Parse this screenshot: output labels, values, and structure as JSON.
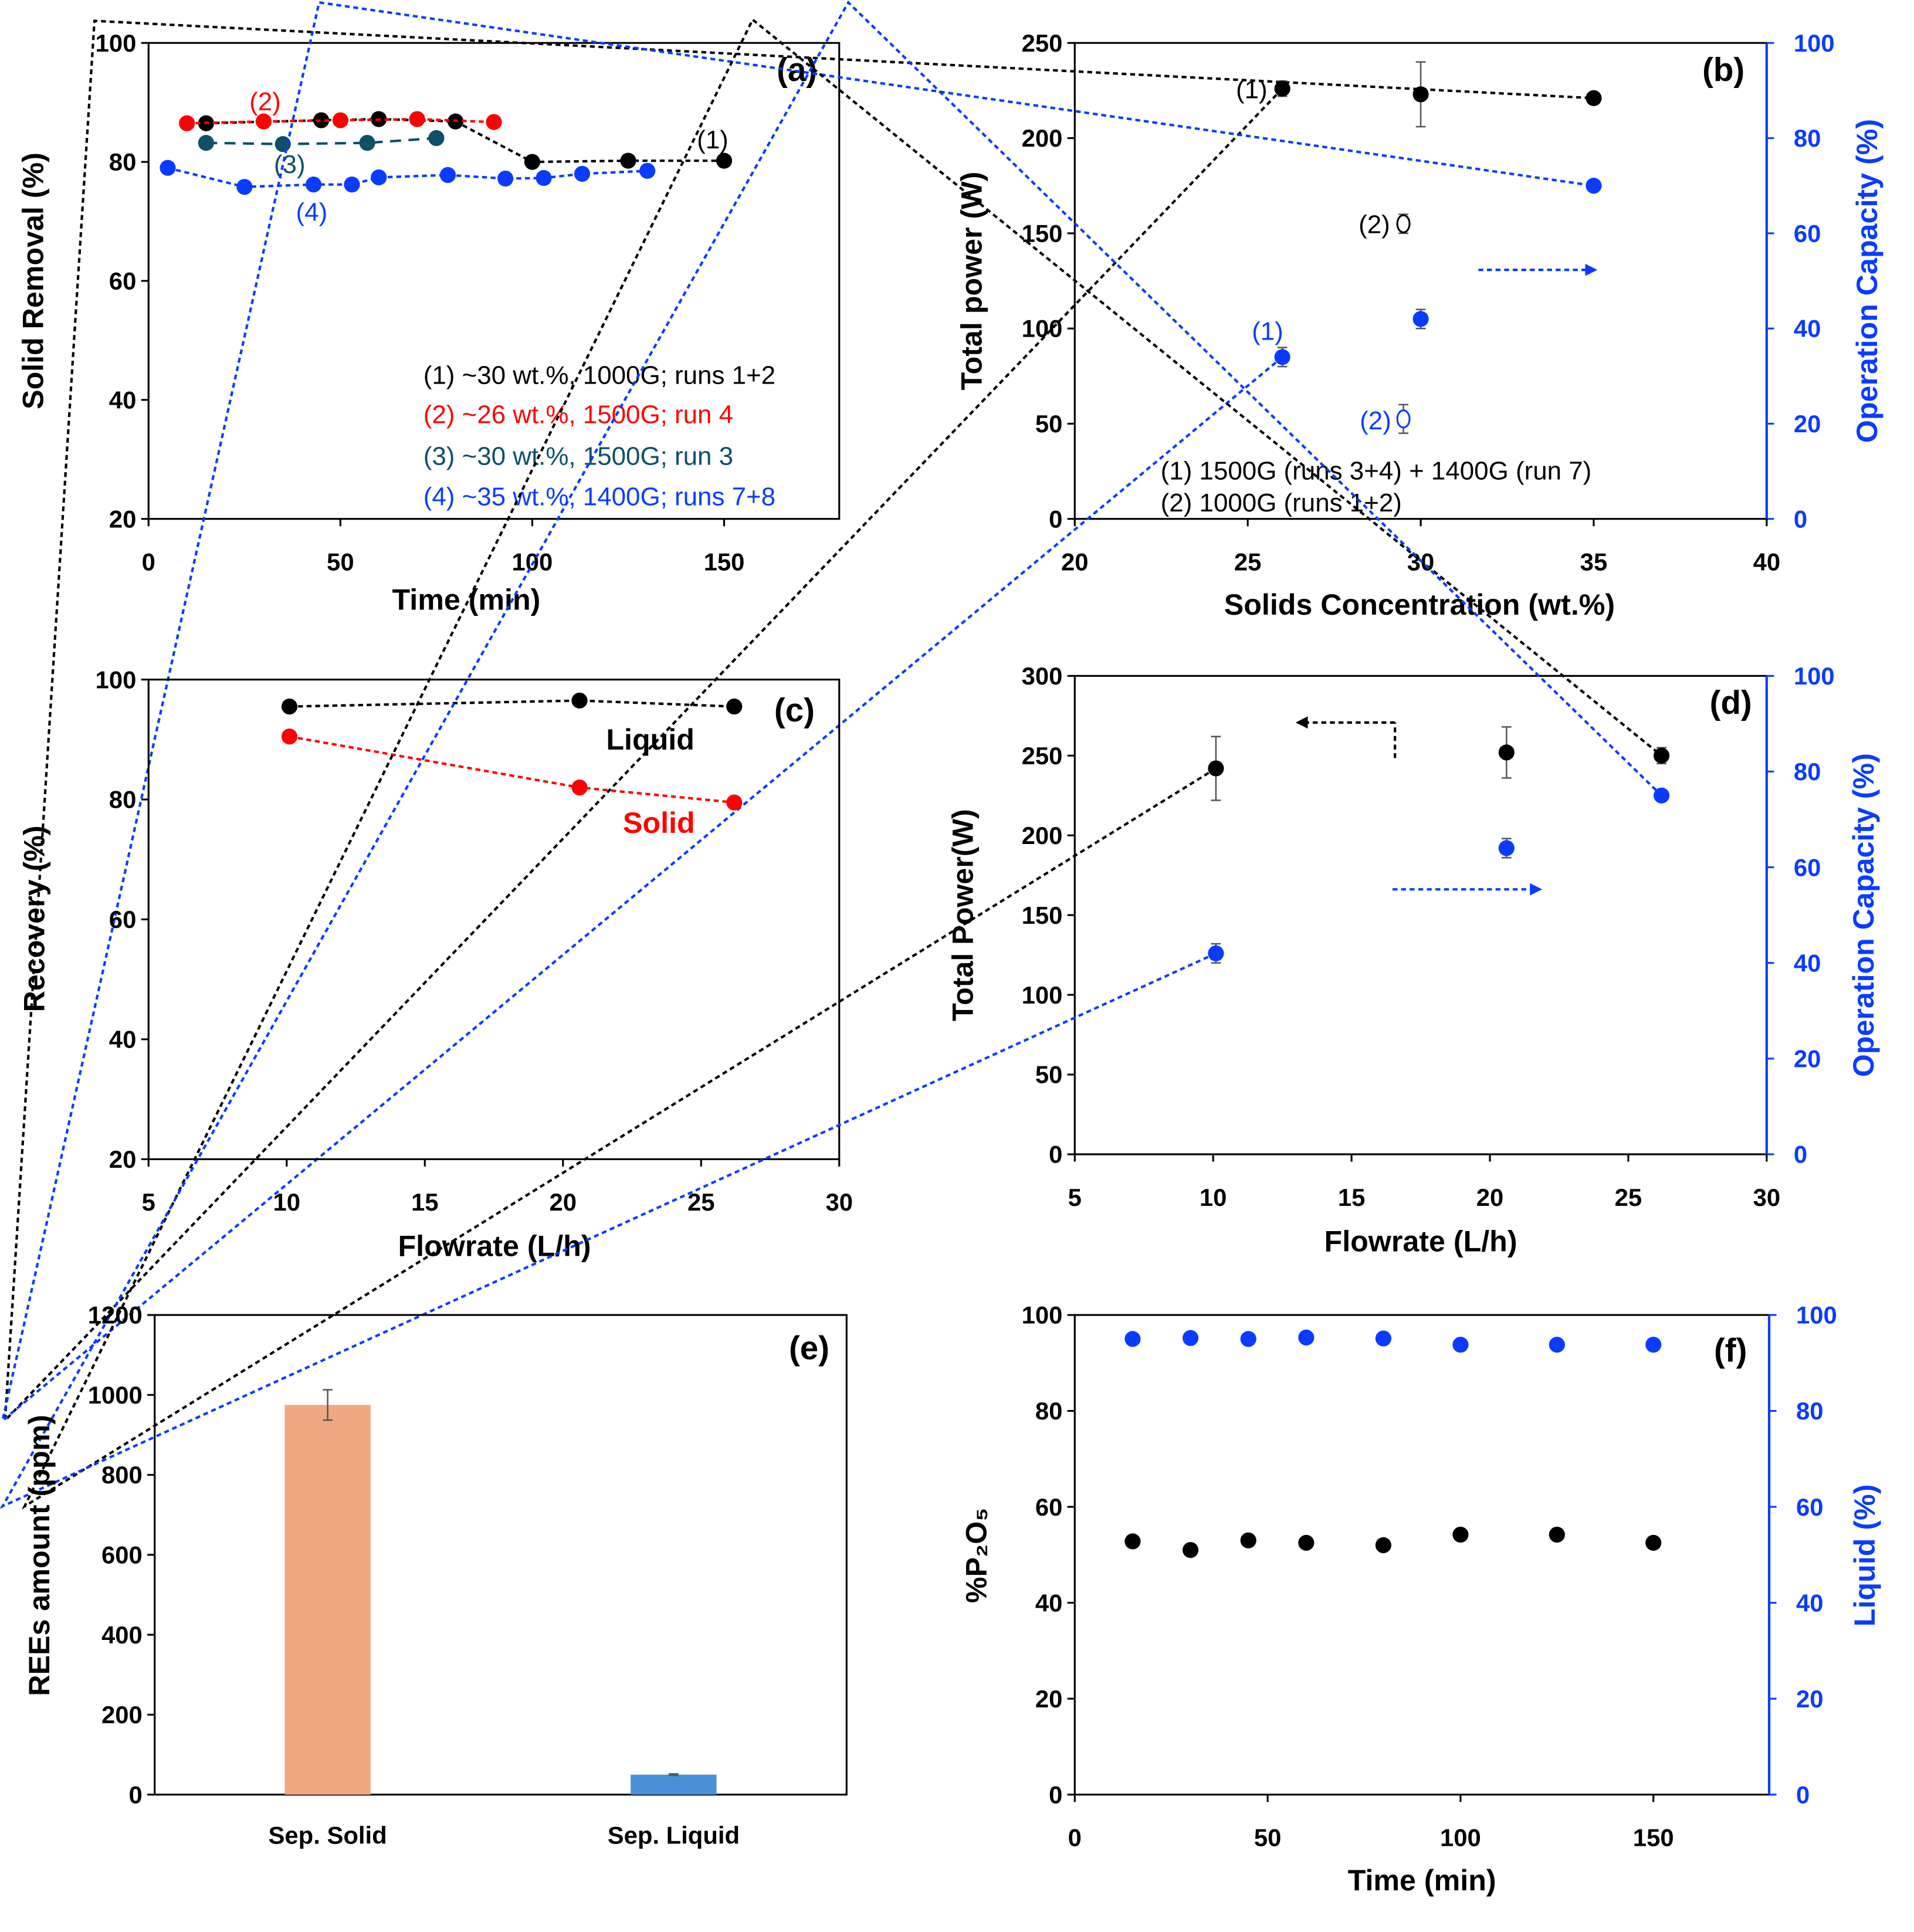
{
  "chart_data": [
    {
      "panel_label": "(a)",
      "type": "line",
      "xlabel": "Time (min)",
      "ylabel": "Solid Removal (%)",
      "xlim": [
        0,
        180
      ],
      "ylim": [
        20,
        100
      ],
      "xticks": [
        0,
        50,
        100,
        150
      ],
      "yticks": [
        20,
        40,
        60,
        80,
        100
      ],
      "series": [
        {
          "color": "#000000",
          "dash": "4,3",
          "marker": "filled",
          "points": [
            [
              15,
              86.5
            ],
            [
              45,
              87
            ],
            [
              60,
              87.2
            ],
            [
              80,
              86.8
            ],
            [
              100,
              80
            ],
            [
              125,
              80.2
            ],
            [
              150,
              80.2
            ]
          ]
        },
        {
          "color": "#ff0000",
          "dash": "4,3",
          "marker": "filled",
          "points": [
            [
              10,
              86.5
            ],
            [
              30,
              86.8
            ],
            [
              50,
              87
            ],
            [
              70,
              87.2
            ],
            [
              90,
              86.7
            ]
          ]
        },
        {
          "color": "#0d5068",
          "dash": "9,6",
          "marker": "filled",
          "points": [
            [
              15,
              83.2
            ],
            [
              35,
              83
            ],
            [
              57,
              83.2
            ],
            [
              75,
              84
            ]
          ]
        },
        {
          "color": "#0a3cff",
          "dash": "4,3",
          "marker": "filled",
          "points": [
            [
              5,
              79
            ],
            [
              25,
              75.8
            ],
            [
              43,
              76.2
            ],
            [
              53,
              76.2
            ],
            [
              60,
              77.4
            ],
            [
              78,
              77.8
            ],
            [
              93,
              77.2
            ],
            [
              103,
              77.3
            ],
            [
              113,
              78
            ],
            [
              130,
              78.5
            ]
          ]
        }
      ],
      "annotations": [
        {
          "text": "(1)",
          "color": "#000000"
        },
        {
          "text": "(2)",
          "color": "#ff0000"
        },
        {
          "text": "(3)",
          "color": "#0d5068"
        },
        {
          "text": "(4)",
          "color": "#0a3cff"
        },
        {
          "text": "(1) ~30 wt.%, 1000G; runs 1+2",
          "color": "#000000"
        },
        {
          "text": "(2) ~26 wt.%, 1500G; run 4",
          "color": "#ff0000"
        },
        {
          "text": "(3) ~30 wt.%, 1500G; run 3",
          "color": "#0d5068"
        },
        {
          "text": "(4) ~35 wt.%, 1400G; runs 7+8",
          "color": "#0a3cff"
        }
      ]
    },
    {
      "panel_label": "(b)",
      "type": "line",
      "xlabel": "Solids Concentration (wt.%)",
      "ylabel": "Total power (W)",
      "y2label": "Operation Capacity (%)",
      "xlim": [
        20,
        40
      ],
      "ylim": [
        0,
        250
      ],
      "y2lim": [
        0,
        100
      ],
      "xticks": [
        20,
        25,
        30,
        35,
        40
      ],
      "yticks": [
        0,
        50,
        100,
        150,
        200,
        250
      ],
      "y2ticks": [
        0,
        20,
        40,
        60,
        80,
        100
      ],
      "series": [
        {
          "color": "#000000",
          "dash": "4,3",
          "marker": "filled",
          "axis": "y",
          "points": [
            [
              26,
              226,
              4
            ],
            [
              30,
              223,
              17
            ],
            [
              35,
              221,
              0
            ]
          ]
        },
        {
          "color": "#000000",
          "marker": "open",
          "axis": "y",
          "points": [
            [
              29.5,
              155,
              5
            ]
          ]
        },
        {
          "color": "#0a3cff",
          "dash": "4,3",
          "marker": "filled",
          "axis": "y2",
          "points": [
            [
              26,
              34,
              2
            ],
            [
              30,
              42,
              2
            ],
            [
              35,
              70,
              0
            ]
          ]
        },
        {
          "color": "#0a3cff",
          "marker": "open",
          "axis": "y2",
          "points": [
            [
              29.5,
              21,
              3
            ]
          ]
        }
      ],
      "annotations": [
        {
          "text": "(1)",
          "color": "#000000"
        },
        {
          "text": "(2)",
          "color": "#000000"
        },
        {
          "text": "(1)",
          "color": "#0a3cff"
        },
        {
          "text": "(2)",
          "color": "#0a3cff"
        },
        {
          "text": "(1) 1500G (runs 3+4) + 1400G (run 7)",
          "color": "#000000"
        },
        {
          "text": "(2) 1000G (runs 1+2)",
          "color": "#000000"
        }
      ]
    },
    {
      "panel_label": "(c)",
      "type": "line",
      "xlabel": "Flowrate (L/h)",
      "ylabel": "Recovery (%)",
      "xlim": [
        5,
        30
      ],
      "ylim": [
        20,
        100
      ],
      "xticks": [
        5,
        10,
        15,
        20,
        25,
        30
      ],
      "yticks": [
        20,
        40,
        60,
        80,
        100
      ],
      "series": [
        {
          "name": "Liquid",
          "color": "#000000",
          "dash": "4,3",
          "marker": "filled",
          "points": [
            [
              10.1,
              95.5
            ],
            [
              20.6,
              96.5
            ],
            [
              26.2,
              95.5
            ]
          ]
        },
        {
          "name": "Solid",
          "color": "#ff0000",
          "dash": "4,3",
          "marker": "filled",
          "points": [
            [
              10.1,
              90.5
            ],
            [
              20.6,
              82
            ],
            [
              26.2,
              79.5
            ]
          ]
        }
      ],
      "annotations": [
        {
          "text": "Liquid",
          "color": "#000000"
        },
        {
          "text": "Solid",
          "color": "#ff0000"
        }
      ]
    },
    {
      "panel_label": "(d)",
      "type": "line",
      "xlabel": "Flowrate (L/h)",
      "ylabel": "Total Power(W)",
      "y2label": "Operation Capacity (%)",
      "xlim": [
        5,
        30
      ],
      "ylim": [
        0,
        300
      ],
      "y2lim": [
        0,
        100
      ],
      "xticks": [
        5,
        10,
        15,
        20,
        25,
        30
      ],
      "yticks": [
        0,
        50,
        100,
        150,
        200,
        250,
        300
      ],
      "y2ticks": [
        0,
        20,
        40,
        60,
        80,
        100
      ],
      "series": [
        {
          "color": "#000000",
          "dash": "4,3",
          "marker": "filled",
          "axis": "y",
          "points": [
            [
              10.1,
              242,
              20
            ],
            [
              20.6,
              252,
              16
            ],
            [
              26.2,
              250,
              5
            ]
          ]
        },
        {
          "color": "#0a3cff",
          "dash": "4,3",
          "marker": "filled",
          "axis": "y2",
          "points": [
            [
              10.1,
              42,
              2
            ],
            [
              20.6,
              64,
              2
            ],
            [
              26.2,
              75,
              0
            ]
          ]
        }
      ],
      "annotations": []
    },
    {
      "panel_label": "(e)",
      "type": "bar",
      "ylabel": "REEs amount (ppm)",
      "ylim": [
        0,
        1200
      ],
      "yticks": [
        0,
        200,
        400,
        600,
        800,
        1000,
        1200
      ],
      "categories": [
        "Sep. Solid",
        "Sep. Liquid"
      ],
      "values": [
        975,
        50
      ],
      "errors": [
        38,
        2
      ],
      "colors": [
        "#f0a882",
        "#4a90d9"
      ]
    },
    {
      "panel_label": "(f)",
      "type": "scatter",
      "xlabel": "Time (min)",
      "ylabel": "%P₂O₅",
      "y2label": "Liquid (%)",
      "xlim": [
        0,
        180
      ],
      "ylim": [
        0,
        100
      ],
      "y2lim": [
        0,
        100
      ],
      "xticks": [
        0,
        50,
        100,
        150
      ],
      "yticks": [
        0,
        20,
        40,
        60,
        80,
        100
      ],
      "y2ticks": [
        0,
        20,
        40,
        60,
        80,
        100
      ],
      "series": [
        {
          "color": "#000000",
          "marker": "filled",
          "axis": "y",
          "points": [
            [
              15,
              52.8
            ],
            [
              30,
              51
            ],
            [
              45,
              53
            ],
            [
              60,
              52.5
            ],
            [
              80,
              52
            ],
            [
              100,
              54.2
            ],
            [
              125,
              54.2
            ],
            [
              150,
              52.5
            ]
          ]
        },
        {
          "color": "#0a3cff",
          "marker": "filled",
          "axis": "y2",
          "points": [
            [
              15,
              95
            ],
            [
              30,
              95.2
            ],
            [
              45,
              95
            ],
            [
              60,
              95.3
            ],
            [
              80,
              95.1
            ],
            [
              100,
              93.8
            ],
            [
              125,
              93.8
            ],
            [
              150,
              93.8
            ]
          ]
        }
      ]
    }
  ]
}
